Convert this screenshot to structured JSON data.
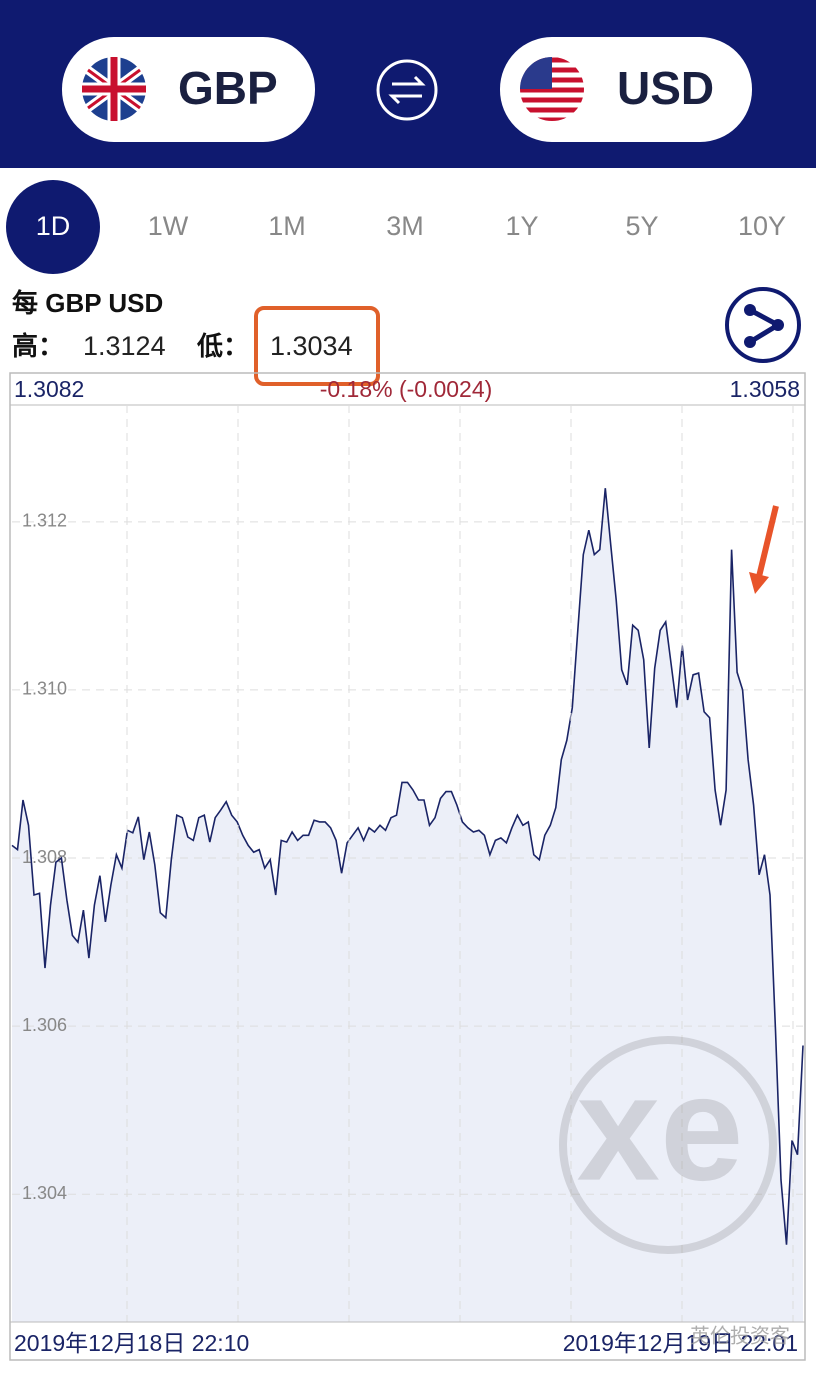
{
  "header": {
    "base": "GBP",
    "quote": "USD"
  },
  "tabs": [
    "1D",
    "1W",
    "1M",
    "3M",
    "1Y",
    "5Y",
    "10Y"
  ],
  "info": {
    "title": "每 GBP USD",
    "high_label": "高：",
    "high": "1.3124",
    "low_label": "低：",
    "low": "1.3034"
  },
  "summary": {
    "open": "1.3082",
    "change": "-0.18% (-0.0024)",
    "close": "1.3058"
  },
  "watermark": "英伦投资客",
  "chart_data": {
    "type": "line",
    "color": "#1a2466",
    "fill": "#eceff8",
    "grid": true,
    "x_labels": [
      "2019年12月18日 22:10",
      "2019年12月19日 22:01"
    ],
    "ylim": [
      1.30248,
      1.31339
    ],
    "yticks": [
      1.304,
      1.306,
      1.308,
      {
        "value": 1.31,
        "label": "1.310"
      },
      1.312
    ],
    "values": [
      1.30815,
      1.3081,
      1.30869,
      1.30839,
      1.30756,
      1.30758,
      1.30669,
      1.30744,
      1.30795,
      1.308,
      1.3075,
      1.30708,
      1.307,
      1.30738,
      1.30681,
      1.30744,
      1.30779,
      1.30724,
      1.30768,
      1.30804,
      1.30788,
      1.30833,
      1.3083,
      1.30849,
      1.30798,
      1.30831,
      1.30792,
      1.30735,
      1.30729,
      1.30798,
      1.30851,
      1.30848,
      1.30825,
      1.30821,
      1.30848,
      1.30851,
      1.30819,
      1.30848,
      1.30857,
      1.30867,
      1.30851,
      1.30843,
      1.30827,
      1.30815,
      1.30807,
      1.3081,
      1.30788,
      1.30798,
      1.30756,
      1.30821,
      1.30819,
      1.30831,
      1.30821,
      1.30827,
      1.30827,
      1.30845,
      1.30843,
      1.30843,
      1.30836,
      1.30821,
      1.30782,
      1.30818,
      1.30827,
      1.30836,
      1.30821,
      1.30836,
      1.30831,
      1.30839,
      1.30833,
      1.30848,
      1.30851,
      1.3089,
      1.3089,
      1.30881,
      1.30869,
      1.30869,
      1.30839,
      1.30848,
      1.30871,
      1.30879,
      1.30879,
      1.30863,
      1.30843,
      1.30836,
      1.30831,
      1.30833,
      1.30827,
      1.30804,
      1.30821,
      1.30824,
      1.30818,
      1.30836,
      1.30851,
      1.30839,
      1.30843,
      1.30804,
      1.30798,
      1.30827,
      1.30839,
      1.3086,
      1.30917,
      1.3094,
      1.30979,
      1.31071,
      1.31161,
      1.3119,
      1.31161,
      1.31167,
      1.3124,
      1.31173,
      1.31107,
      1.31024,
      1.31006,
      1.31077,
      1.31071,
      1.31036,
      1.30931,
      1.31026,
      1.31071,
      1.31081,
      1.3103,
      1.30979,
      1.31053,
      1.30988,
      1.31018,
      1.3102,
      1.30974,
      1.30967,
      1.30881,
      1.30839,
      1.30881,
      1.31167,
      1.31021,
      1.31,
      1.30917,
      1.30863,
      1.3078,
      1.30804,
      1.30756,
      1.30595,
      1.30417,
      1.3034,
      1.30464,
      1.30447,
      1.30577
    ]
  }
}
